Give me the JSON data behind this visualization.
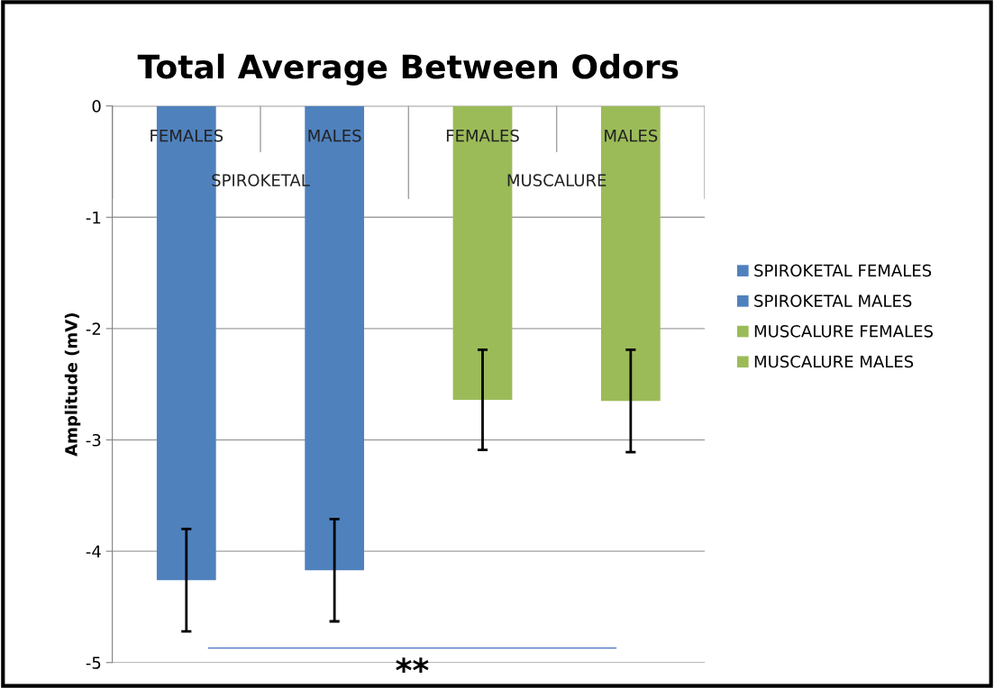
{
  "chart_data": {
    "type": "bar",
    "title": "Total Average Between Odors",
    "ylabel": "Amplitude (mV)",
    "categories": [
      "FEMALES",
      "MALES",
      "FEMALES",
      "MALES"
    ],
    "series": [
      {
        "name": "SPIROKETAL FEMALES",
        "color": "#4f81bd",
        "values": [
          -4.26,
          null,
          null,
          null
        ],
        "errors": [
          0.46,
          null,
          null,
          null
        ]
      },
      {
        "name": "SPIROKETAL MALES",
        "color": "#4f81bd",
        "values": [
          null,
          -4.17,
          null,
          null
        ],
        "errors": [
          null,
          0.46,
          null,
          null
        ]
      },
      {
        "name": "MUSCALURE FEMALES",
        "color": "#9bbb59",
        "values": [
          null,
          null,
          -2.64,
          null
        ],
        "errors": [
          null,
          null,
          0.45,
          null
        ]
      },
      {
        "name": "MUSCALURE MALES",
        "color": "#9bbb59",
        "values": [
          null,
          null,
          null,
          -2.65
        ],
        "errors": [
          null,
          null,
          null,
          0.46
        ]
      }
    ],
    "annotations": [
      "SPIROKETAL",
      "MUSCALURE",
      "**"
    ],
    "ylim": [
      -5,
      0
    ],
    "yticks": [
      -5,
      -4,
      -3,
      -2,
      -1,
      0
    ],
    "grid": "y",
    "legend": "right"
  }
}
